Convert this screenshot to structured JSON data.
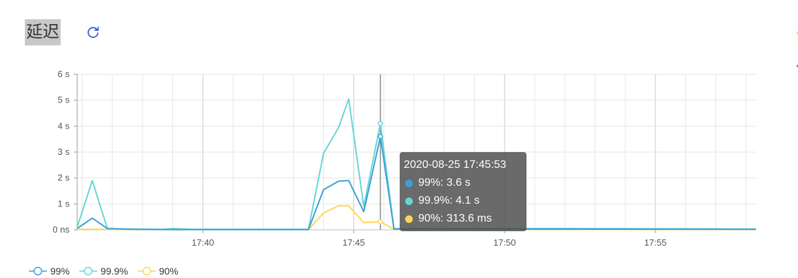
{
  "header": {
    "title": "延迟",
    "refresh_icon": "refresh-icon"
  },
  "colors": {
    "s99": "#3b9fd6",
    "s999": "#63d6d8",
    "s90": "#fdd55b",
    "grid": "#e6e6e6",
    "grid_major": "#c8c8c8",
    "tooltip_bg": "#505050"
  },
  "tooltip": {
    "time": "2020-08-25 17:45:53",
    "rows": [
      {
        "label": "99%: 3.6 s",
        "color": "#3b9fd6"
      },
      {
        "label": "99.9%: 4.1 s",
        "color": "#63d6d8"
      },
      {
        "label": "90%: 313.6 ms",
        "color": "#fdd55b"
      }
    ]
  },
  "chart_data": {
    "type": "line",
    "x_unit": "minutes",
    "xlim": [
      "17:35:50",
      "17:58:20"
    ],
    "ylim": [
      0,
      6
    ],
    "y_ticks": [
      "0 ns",
      "1 s",
      "2 s",
      "3 s",
      "4 s",
      "5 s",
      "6 s"
    ],
    "x_ticks": [
      "17:40",
      "17:45",
      "17:50",
      "17:55"
    ],
    "grid": true,
    "legend_position": "bottom-left",
    "series": [
      {
        "name": "99%",
        "color": "#3b9fd6",
        "x": [
          "17:35:50",
          "17:36:20",
          "17:36:50",
          "17:37:40",
          "17:38:40",
          "17:39:40",
          "17:40:40",
          "17:41:40",
          "17:42:40",
          "17:43:30",
          "17:44:00",
          "17:44:30",
          "17:44:50",
          "17:45:20",
          "17:45:53",
          "17:46:20",
          "17:47:00",
          "17:50:00",
          "17:52:00",
          "17:58:20"
        ],
        "y": [
          0.05,
          0.45,
          0.05,
          0.02,
          0.01,
          0.01,
          0.01,
          0.01,
          0.01,
          0.01,
          1.55,
          1.88,
          1.9,
          0.7,
          3.6,
          0.03,
          0.02,
          0.03,
          0.03,
          0.02
        ]
      },
      {
        "name": "99.9%",
        "color": "#63d6d8",
        "x": [
          "17:35:50",
          "17:36:20",
          "17:36:50",
          "17:37:40",
          "17:38:40",
          "17:39:00",
          "17:39:40",
          "17:40:40",
          "17:41:40",
          "17:42:40",
          "17:43:30",
          "17:44:00",
          "17:44:30",
          "17:44:50",
          "17:45:20",
          "17:45:53",
          "17:46:20",
          "17:47:00",
          "17:50:00",
          "17:52:00",
          "17:58:20"
        ],
        "y": [
          0.1,
          1.9,
          0.05,
          0.03,
          0.02,
          0.05,
          0.02,
          0.02,
          0.02,
          0.02,
          0.02,
          2.95,
          3.95,
          5.05,
          0.9,
          4.1,
          0.05,
          0.05,
          0.05,
          0.05,
          0.03
        ]
      },
      {
        "name": "90%",
        "color": "#fdd55b",
        "x": [
          "17:35:50",
          "17:36:20",
          "17:36:50",
          "17:37:40",
          "17:38:40",
          "17:39:40",
          "17:40:40",
          "17:41:40",
          "17:42:40",
          "17:43:30",
          "17:44:00",
          "17:44:30",
          "17:44:50",
          "17:45:20",
          "17:45:53",
          "17:46:20",
          "17:47:00",
          "17:50:00",
          "17:52:00",
          "17:58:20"
        ],
        "y": [
          0.02,
          0.02,
          0.02,
          0.01,
          0.01,
          0.01,
          0.01,
          0.01,
          0.01,
          0.01,
          0.65,
          0.93,
          0.92,
          0.28,
          0.3136,
          0.02,
          0.01,
          0.02,
          0.02,
          0.01
        ]
      }
    ]
  },
  "legend": {
    "items": [
      {
        "label": "99%",
        "color": "#3b9fd6"
      },
      {
        "label": "99.9%",
        "color": "#63d6d8"
      },
      {
        "label": "90%",
        "color": "#fdd55b"
      }
    ]
  }
}
